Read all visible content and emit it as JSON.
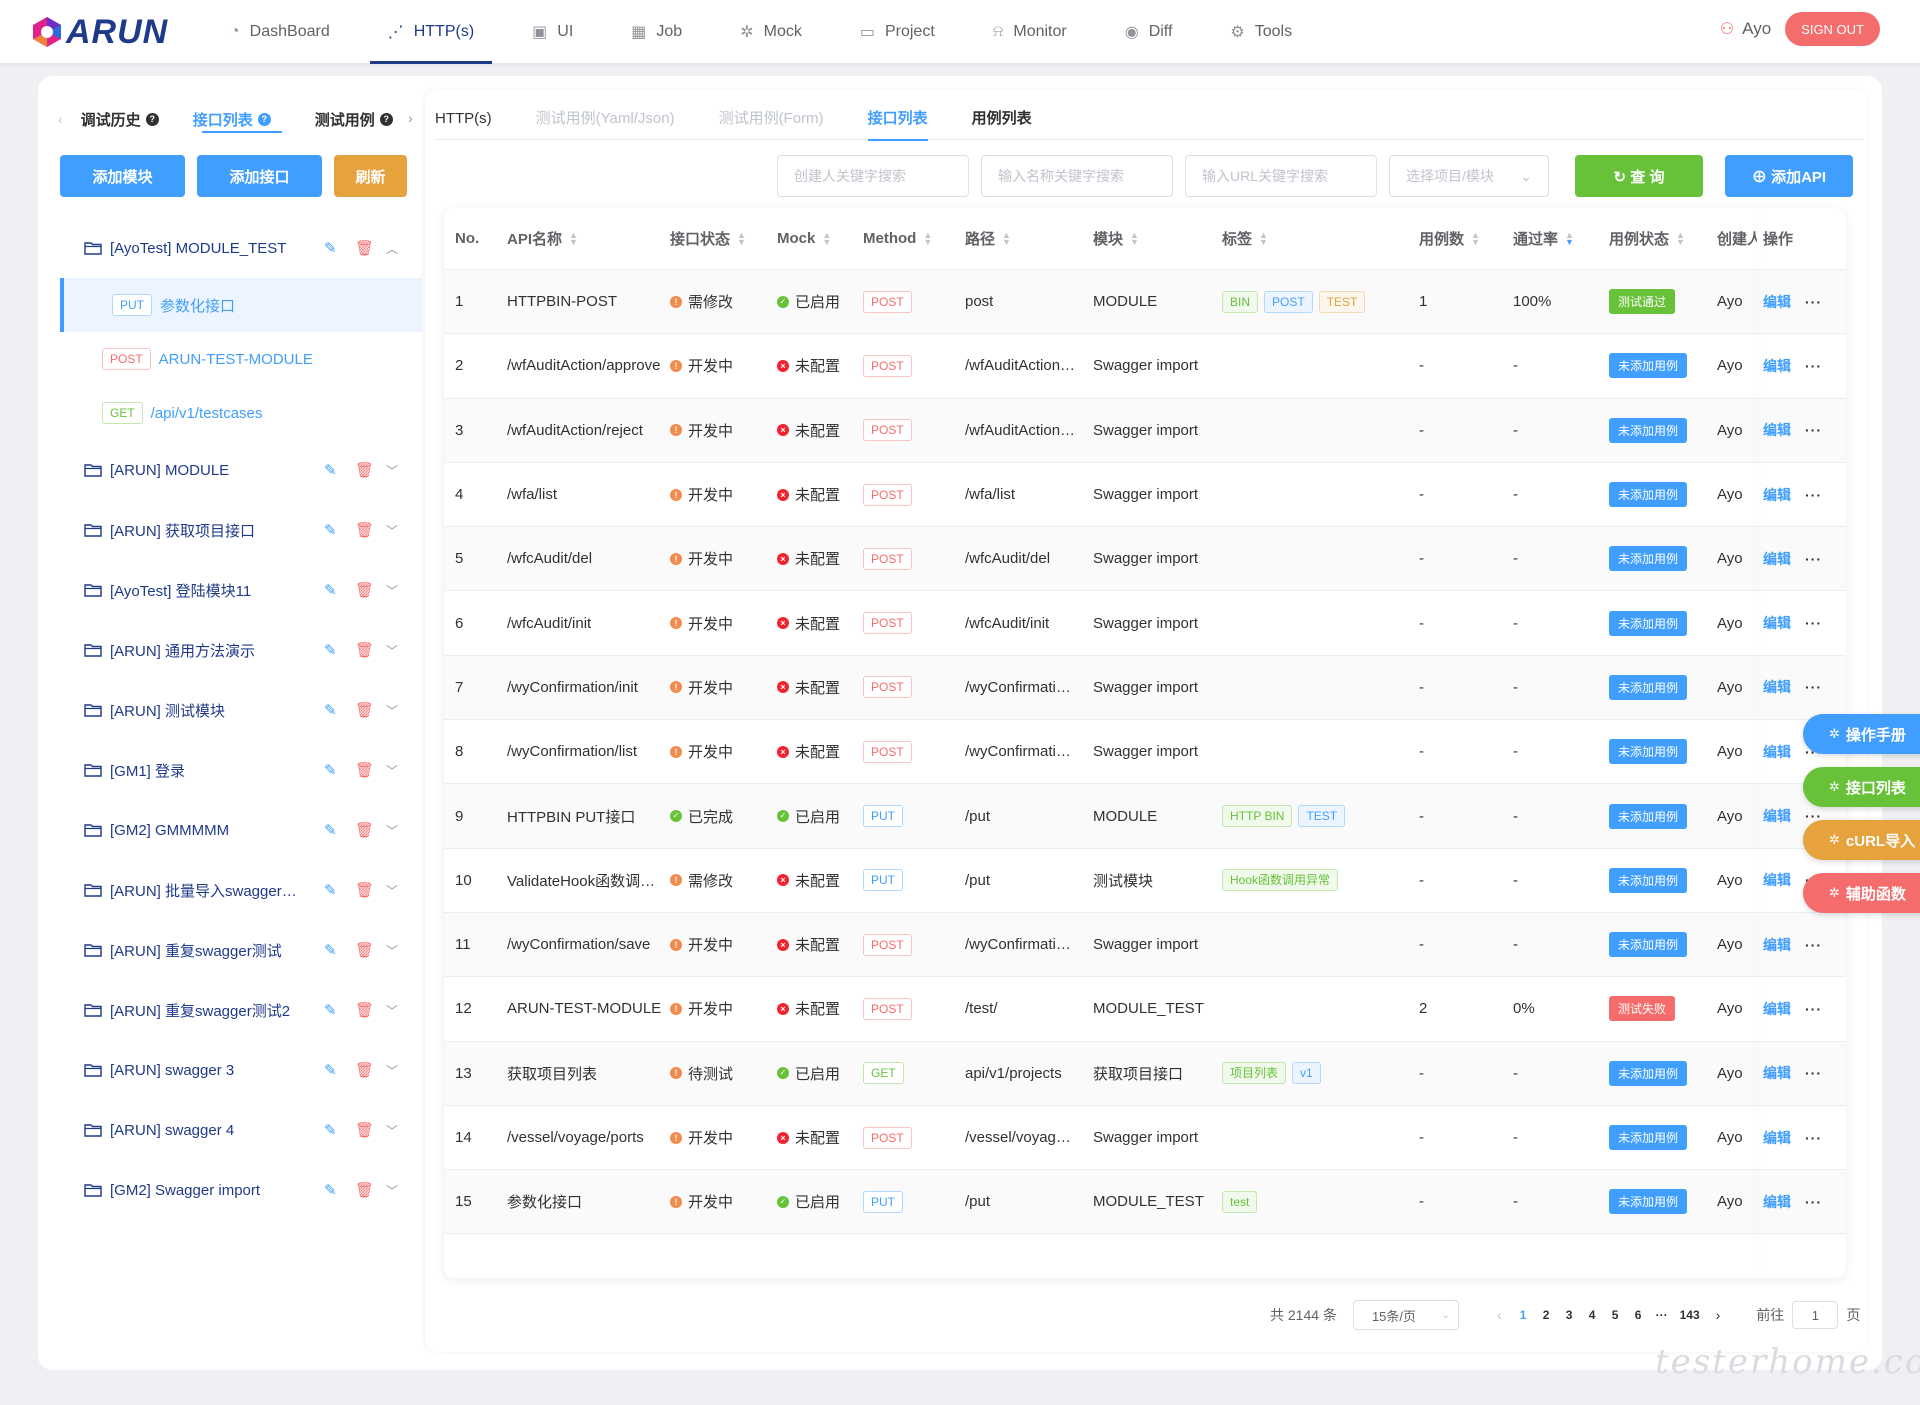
{
  "header": {
    "brand": "ARUN",
    "nav": [
      {
        "label": "DashBoard",
        "icon": "dashboard-icon",
        "glyph": "◔",
        "active": false
      },
      {
        "label": "HTTP(s)",
        "icon": "http-icon",
        "glyph": "⋰",
        "active": true
      },
      {
        "label": "UI",
        "icon": "ui-icon",
        "glyph": "▣",
        "active": false
      },
      {
        "label": "Job",
        "icon": "calendar-icon",
        "glyph": "▦",
        "active": false
      },
      {
        "label": "Mock",
        "icon": "mock-icon",
        "glyph": "✲",
        "active": false
      },
      {
        "label": "Project",
        "icon": "project-icon",
        "glyph": "▭",
        "active": false
      },
      {
        "label": "Monitor",
        "icon": "bell-icon",
        "glyph": "⍾",
        "active": false
      },
      {
        "label": "Diff",
        "icon": "eye-icon",
        "glyph": "◉",
        "active": false
      },
      {
        "label": "Tools",
        "icon": "gear-icon",
        "glyph": "⚙",
        "active": false
      }
    ],
    "user": "Ayo",
    "signout": "SIGN OUT"
  },
  "left": {
    "tabs": [
      "调试历史",
      "接口列表",
      "测试用例"
    ],
    "buttons": {
      "add_module": "添加模块",
      "add_api": "添加接口",
      "refresh": "刷新"
    },
    "tree": [
      {
        "type": "folder",
        "name": "[AyoTest] MODULE_TEST",
        "expanded": true
      },
      {
        "type": "api",
        "method": "PUT",
        "name": "参数化接口",
        "selected": true
      },
      {
        "type": "api",
        "method": "POST",
        "name": "ARUN-TEST-MODULE",
        "selected": false
      },
      {
        "type": "api",
        "method": "GET",
        "name": "/api/v1/testcases",
        "selected": false
      },
      {
        "type": "folder",
        "name": "[ARUN] MODULE",
        "expanded": false
      },
      {
        "type": "folder",
        "name": "[ARUN] 获取项目接口",
        "expanded": false
      },
      {
        "type": "folder",
        "name": "[AyoTest] 登陆模块11",
        "expanded": false
      },
      {
        "type": "folder",
        "name": "[ARUN] 通用方法演示",
        "expanded": false
      },
      {
        "type": "folder",
        "name": "[ARUN] 测试模块",
        "expanded": false
      },
      {
        "type": "folder",
        "name": "[GM1] 登录",
        "expanded": false
      },
      {
        "type": "folder",
        "name": "[GM2] GMMMMM",
        "expanded": false
      },
      {
        "type": "folder",
        "name": "[ARUN] 批量导入swagger测试",
        "expanded": false
      },
      {
        "type": "folder",
        "name": "[ARUN] 重复swagger测试",
        "expanded": false
      },
      {
        "type": "folder",
        "name": "[ARUN] 重复swagger测试2",
        "expanded": false
      },
      {
        "type": "folder",
        "name": "[ARUN] swagger 3",
        "expanded": false
      },
      {
        "type": "folder",
        "name": "[ARUN] swagger 4",
        "expanded": false
      },
      {
        "type": "folder",
        "name": "[GM2] Swagger import",
        "expanded": false
      }
    ]
  },
  "right": {
    "tabs": [
      {
        "label": "HTTP(s)",
        "style": "dark"
      },
      {
        "label": "测试用例(Yaml/Json)",
        "style": "muted"
      },
      {
        "label": "测试用例(Form)",
        "style": "muted"
      },
      {
        "label": "接口列表",
        "style": "active"
      },
      {
        "label": "用例列表",
        "style": "bold"
      }
    ],
    "filters": {
      "creator_placeholder": "创建人关键字搜索",
      "name_placeholder": "输入名称关键字搜索",
      "url_placeholder": "输入URL关键字搜索",
      "project_placeholder": "选择项目/模块",
      "query": "查 询",
      "add": "添加API"
    },
    "columns": [
      "No.",
      "API名称",
      "接口状态",
      "Mock",
      "Method",
      "路径",
      "模块",
      "标签",
      "用例数",
      "通过率",
      "用例状态",
      "创建人",
      "操作"
    ],
    "rows": [
      {
        "no": "1",
        "name": "HTTPBIN-POST",
        "status": "需修改",
        "status_color": "orange",
        "mock": "已启用",
        "mock_color": "green",
        "method": "POST",
        "path": "post",
        "module": "MODULE",
        "tags": [
          {
            "t": "BIN",
            "c": "green"
          },
          {
            "t": "POST",
            "c": "blue"
          },
          {
            "t": "TEST",
            "c": "orange"
          }
        ],
        "cases": "1",
        "rate": "100%",
        "cstatus": "测试通过",
        "cstatus_color": "green",
        "creator": "Ayo"
      },
      {
        "no": "2",
        "name": "/wfAuditAction/approve",
        "status": "开发中",
        "status_color": "orange",
        "mock": "未配置",
        "mock_color": "red",
        "method": "POST",
        "path": "/wfAuditAction/approve",
        "module": "Swagger import",
        "tags": [],
        "cases": "-",
        "rate": "-",
        "cstatus": "未添加用例",
        "cstatus_color": "blue",
        "creator": "Ayo"
      },
      {
        "no": "3",
        "name": "/wfAuditAction/reject",
        "status": "开发中",
        "status_color": "orange",
        "mock": "未配置",
        "mock_color": "red",
        "method": "POST",
        "path": "/wfAuditAction/reject",
        "module": "Swagger import",
        "tags": [],
        "cases": "-",
        "rate": "-",
        "cstatus": "未添加用例",
        "cstatus_color": "blue",
        "creator": "Ayo"
      },
      {
        "no": "4",
        "name": "/wfa/list",
        "status": "开发中",
        "status_color": "orange",
        "mock": "未配置",
        "mock_color": "red",
        "method": "POST",
        "path": "/wfa/list",
        "module": "Swagger import",
        "tags": [],
        "cases": "-",
        "rate": "-",
        "cstatus": "未添加用例",
        "cstatus_color": "blue",
        "creator": "Ayo"
      },
      {
        "no": "5",
        "name": "/wfcAudit/del",
        "status": "开发中",
        "status_color": "orange",
        "mock": "未配置",
        "mock_color": "red",
        "method": "POST",
        "path": "/wfcAudit/del",
        "module": "Swagger import",
        "tags": [],
        "cases": "-",
        "rate": "-",
        "cstatus": "未添加用例",
        "cstatus_color": "blue",
        "creator": "Ayo"
      },
      {
        "no": "6",
        "name": "/wfcAudit/init",
        "status": "开发中",
        "status_color": "orange",
        "mock": "未配置",
        "mock_color": "red",
        "method": "POST",
        "path": "/wfcAudit/init",
        "module": "Swagger import",
        "tags": [],
        "cases": "-",
        "rate": "-",
        "cstatus": "未添加用例",
        "cstatus_color": "blue",
        "creator": "Ayo"
      },
      {
        "no": "7",
        "name": "/wyConfirmation/init",
        "status": "开发中",
        "status_color": "orange",
        "mock": "未配置",
        "mock_color": "red",
        "method": "POST",
        "path": "/wyConfirmation/init",
        "module": "Swagger import",
        "tags": [],
        "cases": "-",
        "rate": "-",
        "cstatus": "未添加用例",
        "cstatus_color": "blue",
        "creator": "Ayo"
      },
      {
        "no": "8",
        "name": "/wyConfirmation/list",
        "status": "开发中",
        "status_color": "orange",
        "mock": "未配置",
        "mock_color": "red",
        "method": "POST",
        "path": "/wyConfirmation/list",
        "module": "Swagger import",
        "tags": [],
        "cases": "-",
        "rate": "-",
        "cstatus": "未添加用例",
        "cstatus_color": "blue",
        "creator": "Ayo"
      },
      {
        "no": "9",
        "name": "HTTPBIN PUT接口",
        "status": "已完成",
        "status_color": "green",
        "mock": "已启用",
        "mock_color": "green",
        "method": "PUT",
        "path": "/put",
        "module": "MODULE",
        "tags": [
          {
            "t": "HTTP BIN",
            "c": "green"
          },
          {
            "t": "TEST",
            "c": "blue"
          }
        ],
        "cases": "-",
        "rate": "-",
        "cstatus": "未添加用例",
        "cstatus_color": "blue",
        "creator": "Ayo"
      },
      {
        "no": "10",
        "name": "ValidateHook函数调用异常",
        "status": "需修改",
        "status_color": "orange",
        "mock": "未配置",
        "mock_color": "red",
        "method": "PUT",
        "path": "/put",
        "module": "测试模块",
        "tags": [
          {
            "t": "Hook函数调用异常",
            "c": "green"
          }
        ],
        "cases": "-",
        "rate": "-",
        "cstatus": "未添加用例",
        "cstatus_color": "blue",
        "creator": "Ayo"
      },
      {
        "no": "11",
        "name": "/wyConfirmation/save",
        "status": "开发中",
        "status_color": "orange",
        "mock": "未配置",
        "mock_color": "red",
        "method": "POST",
        "path": "/wyConfirmation/save",
        "module": "Swagger import",
        "tags": [],
        "cases": "-",
        "rate": "-",
        "cstatus": "未添加用例",
        "cstatus_color": "blue",
        "creator": "Ayo"
      },
      {
        "no": "12",
        "name": "ARUN-TEST-MODULE",
        "status": "开发中",
        "status_color": "orange",
        "mock": "未配置",
        "mock_color": "red",
        "method": "POST",
        "path": "/test/",
        "module": "MODULE_TEST",
        "tags": [],
        "cases": "2",
        "rate": "0%",
        "cstatus": "测试失败",
        "cstatus_color": "red",
        "creator": "Ayo"
      },
      {
        "no": "13",
        "name": "获取项目列表",
        "status": "待测试",
        "status_color": "orange",
        "mock": "已启用",
        "mock_color": "green",
        "method": "GET",
        "path": "api/v1/projects",
        "module": "获取项目接口",
        "tags": [
          {
            "t": "项目列表",
            "c": "green"
          },
          {
            "t": "v1",
            "c": "blue"
          }
        ],
        "cases": "-",
        "rate": "-",
        "cstatus": "未添加用例",
        "cstatus_color": "blue",
        "creator": "Ayo"
      },
      {
        "no": "14",
        "name": "/vessel/voyage/ports",
        "status": "开发中",
        "status_color": "orange",
        "mock": "未配置",
        "mock_color": "red",
        "method": "POST",
        "path": "/vessel/voyage/ports",
        "module": "Swagger import",
        "tags": [],
        "cases": "-",
        "rate": "-",
        "cstatus": "未添加用例",
        "cstatus_color": "blue",
        "creator": "Ayo"
      },
      {
        "no": "15",
        "name": "参数化接口",
        "status": "开发中",
        "status_color": "orange",
        "mock": "已启用",
        "mock_color": "green",
        "method": "PUT",
        "path": "/put",
        "module": "MODULE_TEST",
        "tags": [
          {
            "t": "test",
            "c": "green"
          }
        ],
        "cases": "-",
        "rate": "-",
        "cstatus": "未添加用例",
        "cstatus_color": "blue",
        "creator": "Ayo"
      }
    ],
    "op_edit": "编辑",
    "op_more": "···",
    "pagination": {
      "total": "共 2144 条",
      "page_size": "15条/页",
      "pages": [
        "1",
        "2",
        "3",
        "4",
        "5",
        "6",
        "···",
        "143"
      ],
      "current": "1",
      "goto_label": "前往",
      "goto_value": "1",
      "page_suffix": "页"
    }
  },
  "floating": [
    {
      "label": "操作手册",
      "color": "blue"
    },
    {
      "label": "接口列表",
      "color": "green"
    },
    {
      "label": "cURL导入",
      "color": "orange"
    },
    {
      "label": "辅助函数",
      "color": "red"
    }
  ],
  "watermark": "testerhome.com"
}
